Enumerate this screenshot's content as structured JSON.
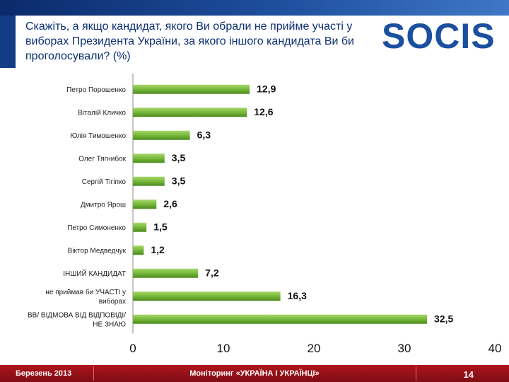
{
  "header": {
    "title": "Скажіть, а якщо кандидат, якого Ви обрали не прийме участі у виборах Президента України, за якого іншого кандидата Ви би проголосували? (%)",
    "logo_text": "SOCIS"
  },
  "chart_data": {
    "type": "bar",
    "orientation": "horizontal",
    "categories": [
      "Петро Порошенко",
      "Віталій Кличко",
      "Юлія Тимошенко",
      "Олег Тягнибок",
      "Сергій Тігіпко",
      "Дмитро Ярош",
      "Петро Симоненко",
      "Віктор Медведчук",
      "ІНШИЙ КАНДИДАТ",
      "не приймав би УЧАСТІ у виборах",
      "ВВ/ ВІДМОВА ВІД ВІДПОВІДІ/ НЕ ЗНАЮ"
    ],
    "category_lines": [
      [
        "Петро Порошенко"
      ],
      [
        "Віталій Кличко"
      ],
      [
        "Юлія Тимошенко"
      ],
      [
        "Олег Тягнибок"
      ],
      [
        "Сергій Тігіпко"
      ],
      [
        "Дмитро Ярош"
      ],
      [
        "Петро Симоненко"
      ],
      [
        "Віктор Медведчук"
      ],
      [
        "ІНШИЙ КАНДИДАТ"
      ],
      [
        "не приймав би УЧАСТІ у",
        "виборах"
      ],
      [
        "ВВ/ ВІДМОВА ВІД ВІДПОВІДІ/",
        "НЕ ЗНАЮ"
      ]
    ],
    "values": [
      12.9,
      12.6,
      6.3,
      3.5,
      3.5,
      2.6,
      1.5,
      1.2,
      7.2,
      16.3,
      32.5
    ],
    "value_labels": [
      "12,9",
      "12,6",
      "6,3",
      "3,5",
      "3,5",
      "2,6",
      "1,5",
      "1,2",
      "7,2",
      "16,3",
      "32,5"
    ],
    "xlim": [
      0,
      40
    ],
    "xticks": [
      0,
      10,
      20,
      30,
      40
    ],
    "grid": false,
    "legend": "none",
    "bar_color": "#78b83a"
  },
  "footer": {
    "date": "Березень 2013",
    "center": "Моніторинг «УКРАЇНА І УКРАЇНЦІ»",
    "page": "14"
  },
  "colors": {
    "title": "#0d2f73",
    "footer_bg": "#9e1118",
    "logo_blue": "#1b4fa0"
  }
}
